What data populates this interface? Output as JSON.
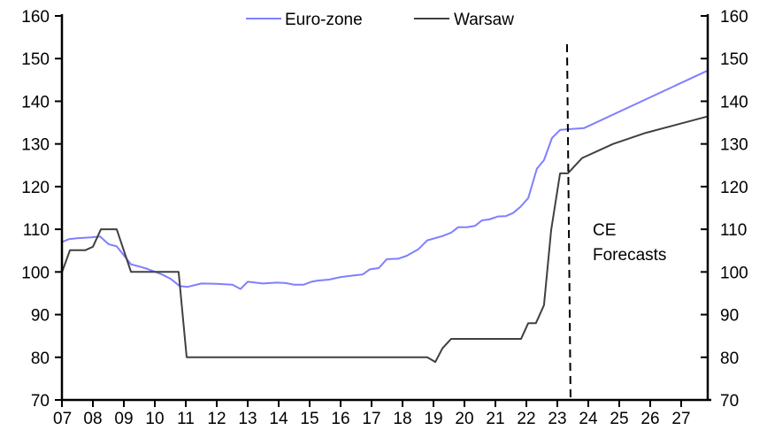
{
  "chart_data": {
    "type": "line",
    "title": "",
    "xlabel": "",
    "ylabel": "",
    "xlim": [
      2007,
      2027.83
    ],
    "ylim": [
      70,
      160
    ],
    "yticks": [
      70,
      80,
      90,
      100,
      110,
      120,
      130,
      140,
      150,
      160
    ],
    "xtick_labels": [
      "07",
      "08",
      "09",
      "10",
      "11",
      "12",
      "13",
      "14",
      "15",
      "16",
      "17",
      "18",
      "19",
      "20",
      "21",
      "22",
      "23",
      "24",
      "25",
      "26",
      "27"
    ],
    "legend_position": "top-center",
    "forecast_start": 2023.37,
    "annotation": [
      "CE",
      "Forecasts"
    ],
    "series": [
      {
        "name": "Euro-zone",
        "color": "#7f7fff",
        "x": [
          2007.0,
          2007.23,
          2007.49,
          2007.94,
          2008.23,
          2008.51,
          2008.77,
          2009.23,
          2009.49,
          2009.77,
          2010.23,
          2010.51,
          2010.8,
          2011.06,
          2011.51,
          2012.0,
          2012.51,
          2012.77,
          2013.0,
          2013.49,
          2013.94,
          2014.23,
          2014.51,
          2014.8,
          2015.06,
          2015.29,
          2015.63,
          2016.0,
          2016.43,
          2016.71,
          2016.94,
          2017.23,
          2017.49,
          2017.86,
          2018.14,
          2018.51,
          2018.8,
          2019.29,
          2019.57,
          2019.8,
          2020.09,
          2020.34,
          2020.57,
          2020.8,
          2021.09,
          2021.34,
          2021.57,
          2021.8,
          2022.06,
          2022.34,
          2022.57,
          2022.83,
          2023.09,
          2023.86,
          2027.83
        ],
        "values": [
          107.0,
          107.7,
          107.9,
          108.1,
          108.3,
          106.5,
          106.0,
          101.8,
          101.3,
          100.7,
          99.4,
          98.4,
          96.7,
          96.5,
          97.3,
          97.2,
          97.0,
          96.0,
          97.7,
          97.3,
          97.5,
          97.4,
          97.0,
          97.0,
          97.7,
          98.0,
          98.2,
          98.8,
          99.2,
          99.4,
          100.6,
          100.9,
          103.0,
          103.1,
          103.8,
          105.3,
          107.4,
          108.4,
          109.2,
          110.5,
          110.5,
          110.8,
          112.1,
          112.3,
          113.0,
          113.1,
          113.8,
          115.2,
          117.3,
          124.2,
          126.2,
          131.4,
          133.3,
          133.7,
          147.1
        ]
      },
      {
        "name": "Warsaw",
        "color": "#404040",
        "x": [
          2007.0,
          2007.26,
          2007.76,
          2008.0,
          2008.26,
          2008.77,
          2009.23,
          2010.77,
          2011.03,
          2018.8,
          2019.06,
          2019.29,
          2019.57,
          2021.83,
          2022.06,
          2022.31,
          2022.57,
          2022.8,
          2023.09,
          2023.34,
          2023.8,
          2024.8,
          2025.86,
          2027.83
        ],
        "values": [
          99.9,
          105.1,
          105.1,
          105.9,
          110.0,
          110.0,
          100.0,
          100.0,
          80.0,
          80.0,
          78.9,
          82.1,
          84.3,
          84.3,
          88.0,
          88.0,
          92.2,
          109.8,
          123.1,
          123.1,
          126.7,
          130.0,
          132.6,
          136.4
        ]
      }
    ]
  }
}
